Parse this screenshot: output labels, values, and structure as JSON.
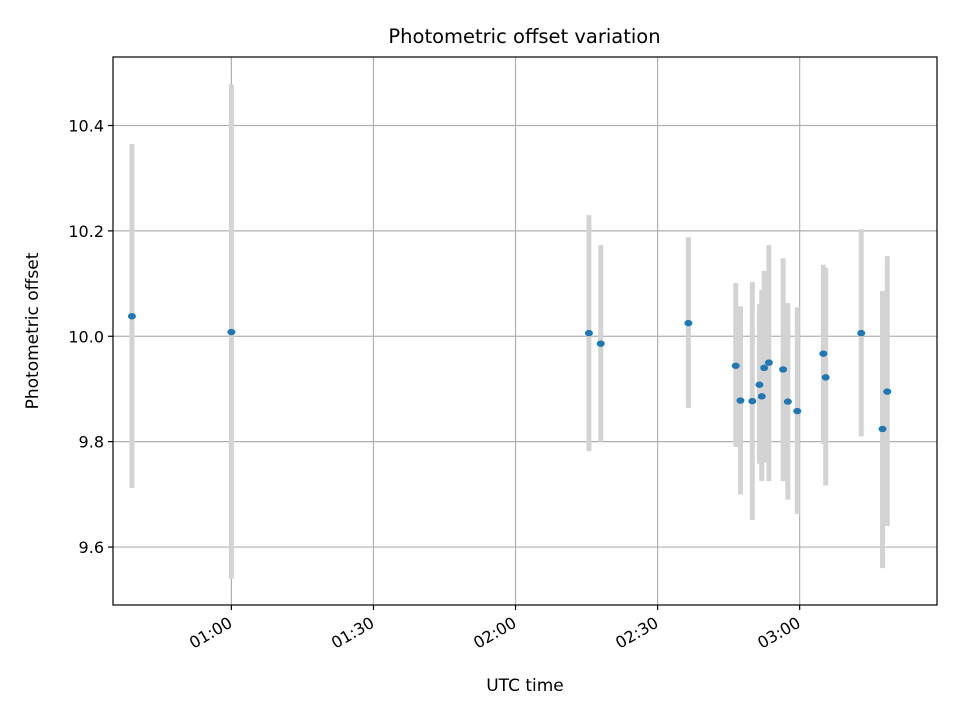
{
  "chart_data": {
    "type": "scatter",
    "title": "Photometric offset variation",
    "xlabel": "UTC time",
    "ylabel": "Photometric offset",
    "x_unit": "UTC time (HH:MM)",
    "xlim": [
      "00:35",
      "03:29"
    ],
    "ylim": [
      9.49,
      10.53
    ],
    "grid": true,
    "x_ticks": [
      {
        "value": "01:00",
        "label": "01:00"
      },
      {
        "value": "01:30",
        "label": "01:30"
      },
      {
        "value": "02:00",
        "label": "02:00"
      },
      {
        "value": "02:30",
        "label": "02:30"
      },
      {
        "value": "03:00",
        "label": "03:00"
      }
    ],
    "y_ticks": [
      {
        "value": 9.6,
        "label": "9.6"
      },
      {
        "value": 9.8,
        "label": "9.8"
      },
      {
        "value": 10.0,
        "label": "10.0"
      },
      {
        "value": 10.2,
        "label": "10.2"
      },
      {
        "value": 10.4,
        "label": "10.4"
      }
    ],
    "point_color": "#1f77b4",
    "errorbar_color": "#d3d3d3",
    "points": [
      {
        "x": "00:39:00",
        "y": 10.038,
        "ylow": 9.712,
        "yhigh": 10.365
      },
      {
        "x": "01:00:00",
        "y": 10.008,
        "ylow": 9.54,
        "yhigh": 10.478
      },
      {
        "x": "02:15:30",
        "y": 10.006,
        "ylow": 9.782,
        "yhigh": 10.23
      },
      {
        "x": "02:18:00",
        "y": 9.986,
        "ylow": 9.8,
        "yhigh": 10.173
      },
      {
        "x": "02:36:30",
        "y": 10.025,
        "ylow": 9.864,
        "yhigh": 10.188
      },
      {
        "x": "02:46:30",
        "y": 9.944,
        "ylow": 9.79,
        "yhigh": 10.101
      },
      {
        "x": "02:47:30",
        "y": 9.878,
        "ylow": 9.7,
        "yhigh": 10.057
      },
      {
        "x": "02:50:00",
        "y": 9.877,
        "ylow": 9.651,
        "yhigh": 10.103
      },
      {
        "x": "02:51:30",
        "y": 9.908,
        "ylow": 9.758,
        "yhigh": 10.061
      },
      {
        "x": "02:52:00",
        "y": 9.886,
        "ylow": 9.725,
        "yhigh": 10.088
      },
      {
        "x": "02:52:30",
        "y": 9.94,
        "ylow": 9.76,
        "yhigh": 10.124
      },
      {
        "x": "02:53:30",
        "y": 9.95,
        "ylow": 9.725,
        "yhigh": 10.173
      },
      {
        "x": "02:56:30",
        "y": 9.937,
        "ylow": 9.725,
        "yhigh": 10.148
      },
      {
        "x": "02:57:30",
        "y": 9.876,
        "ylow": 9.69,
        "yhigh": 10.063
      },
      {
        "x": "02:59:30",
        "y": 9.858,
        "ylow": 9.663,
        "yhigh": 10.055
      },
      {
        "x": "03:05:00",
        "y": 9.967,
        "ylow": 9.795,
        "yhigh": 10.136
      },
      {
        "x": "03:05:30",
        "y": 9.922,
        "ylow": 9.717,
        "yhigh": 10.13
      },
      {
        "x": "03:13:00",
        "y": 10.006,
        "ylow": 9.81,
        "yhigh": 10.203
      },
      {
        "x": "03:17:30",
        "y": 9.824,
        "ylow": 9.56,
        "yhigh": 10.086
      },
      {
        "x": "03:18:30",
        "y": 9.895,
        "ylow": 9.64,
        "yhigh": 10.152
      }
    ]
  }
}
